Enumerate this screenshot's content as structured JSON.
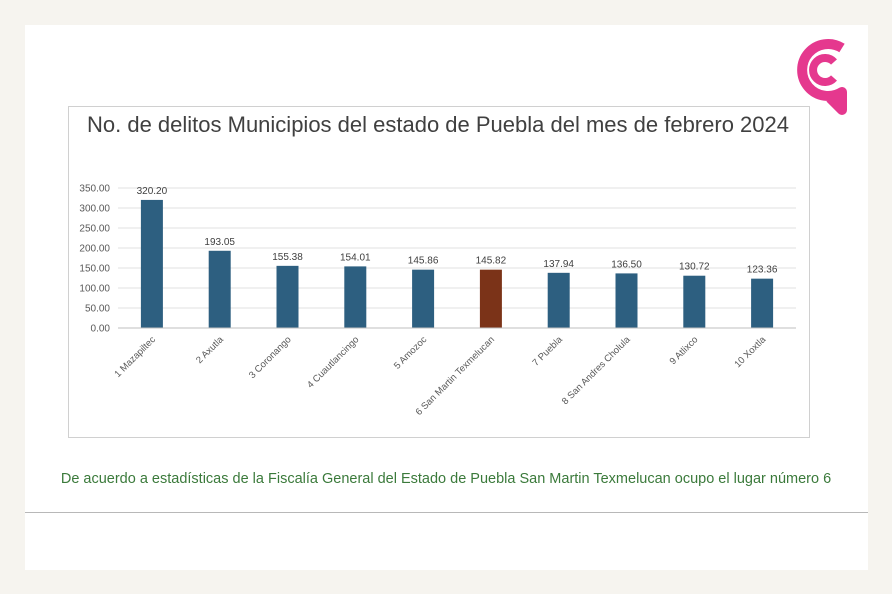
{
  "colors": {
    "bar": "#2d5f80",
    "highlight": "#7b3318",
    "logo": "#e5388e",
    "caption": "#3b7a3b"
  },
  "logo": {
    "icon": "speech-bubble-c-logo"
  },
  "chart_data": {
    "type": "bar",
    "title": "No. de delitos Municipios del estado de Puebla del mes de febrero 2024",
    "categories": [
      "1 Mazapiltec",
      "2 Axutla",
      "3 Coronango",
      "4 Cuautlancingo",
      "5 Amozoc",
      "6 San Martin Texmelucan",
      "7 Puebla",
      "8 San Andres Cholula",
      "9 Atlixco",
      "10 Xoxtla"
    ],
    "values": [
      320.2,
      193.05,
      155.38,
      154.01,
      145.86,
      145.82,
      137.94,
      136.5,
      130.72,
      123.36
    ],
    "value_labels": [
      "320.20",
      "193.05",
      "155.38",
      "154.01",
      "145.86",
      "145.82",
      "137.94",
      "136.50",
      "130.72",
      "123.36"
    ],
    "yticks": [
      "0.00",
      "50.00",
      "100.00",
      "150.00",
      "200.00",
      "250.00",
      "300.00",
      "350.00"
    ],
    "ylim": [
      0,
      350
    ],
    "highlight_index": 5,
    "grid": true
  },
  "caption": "De acuerdo a estadísticas de la Fiscalía General del Estado de Puebla San Martin Texmelucan ocupo el lugar número 6"
}
